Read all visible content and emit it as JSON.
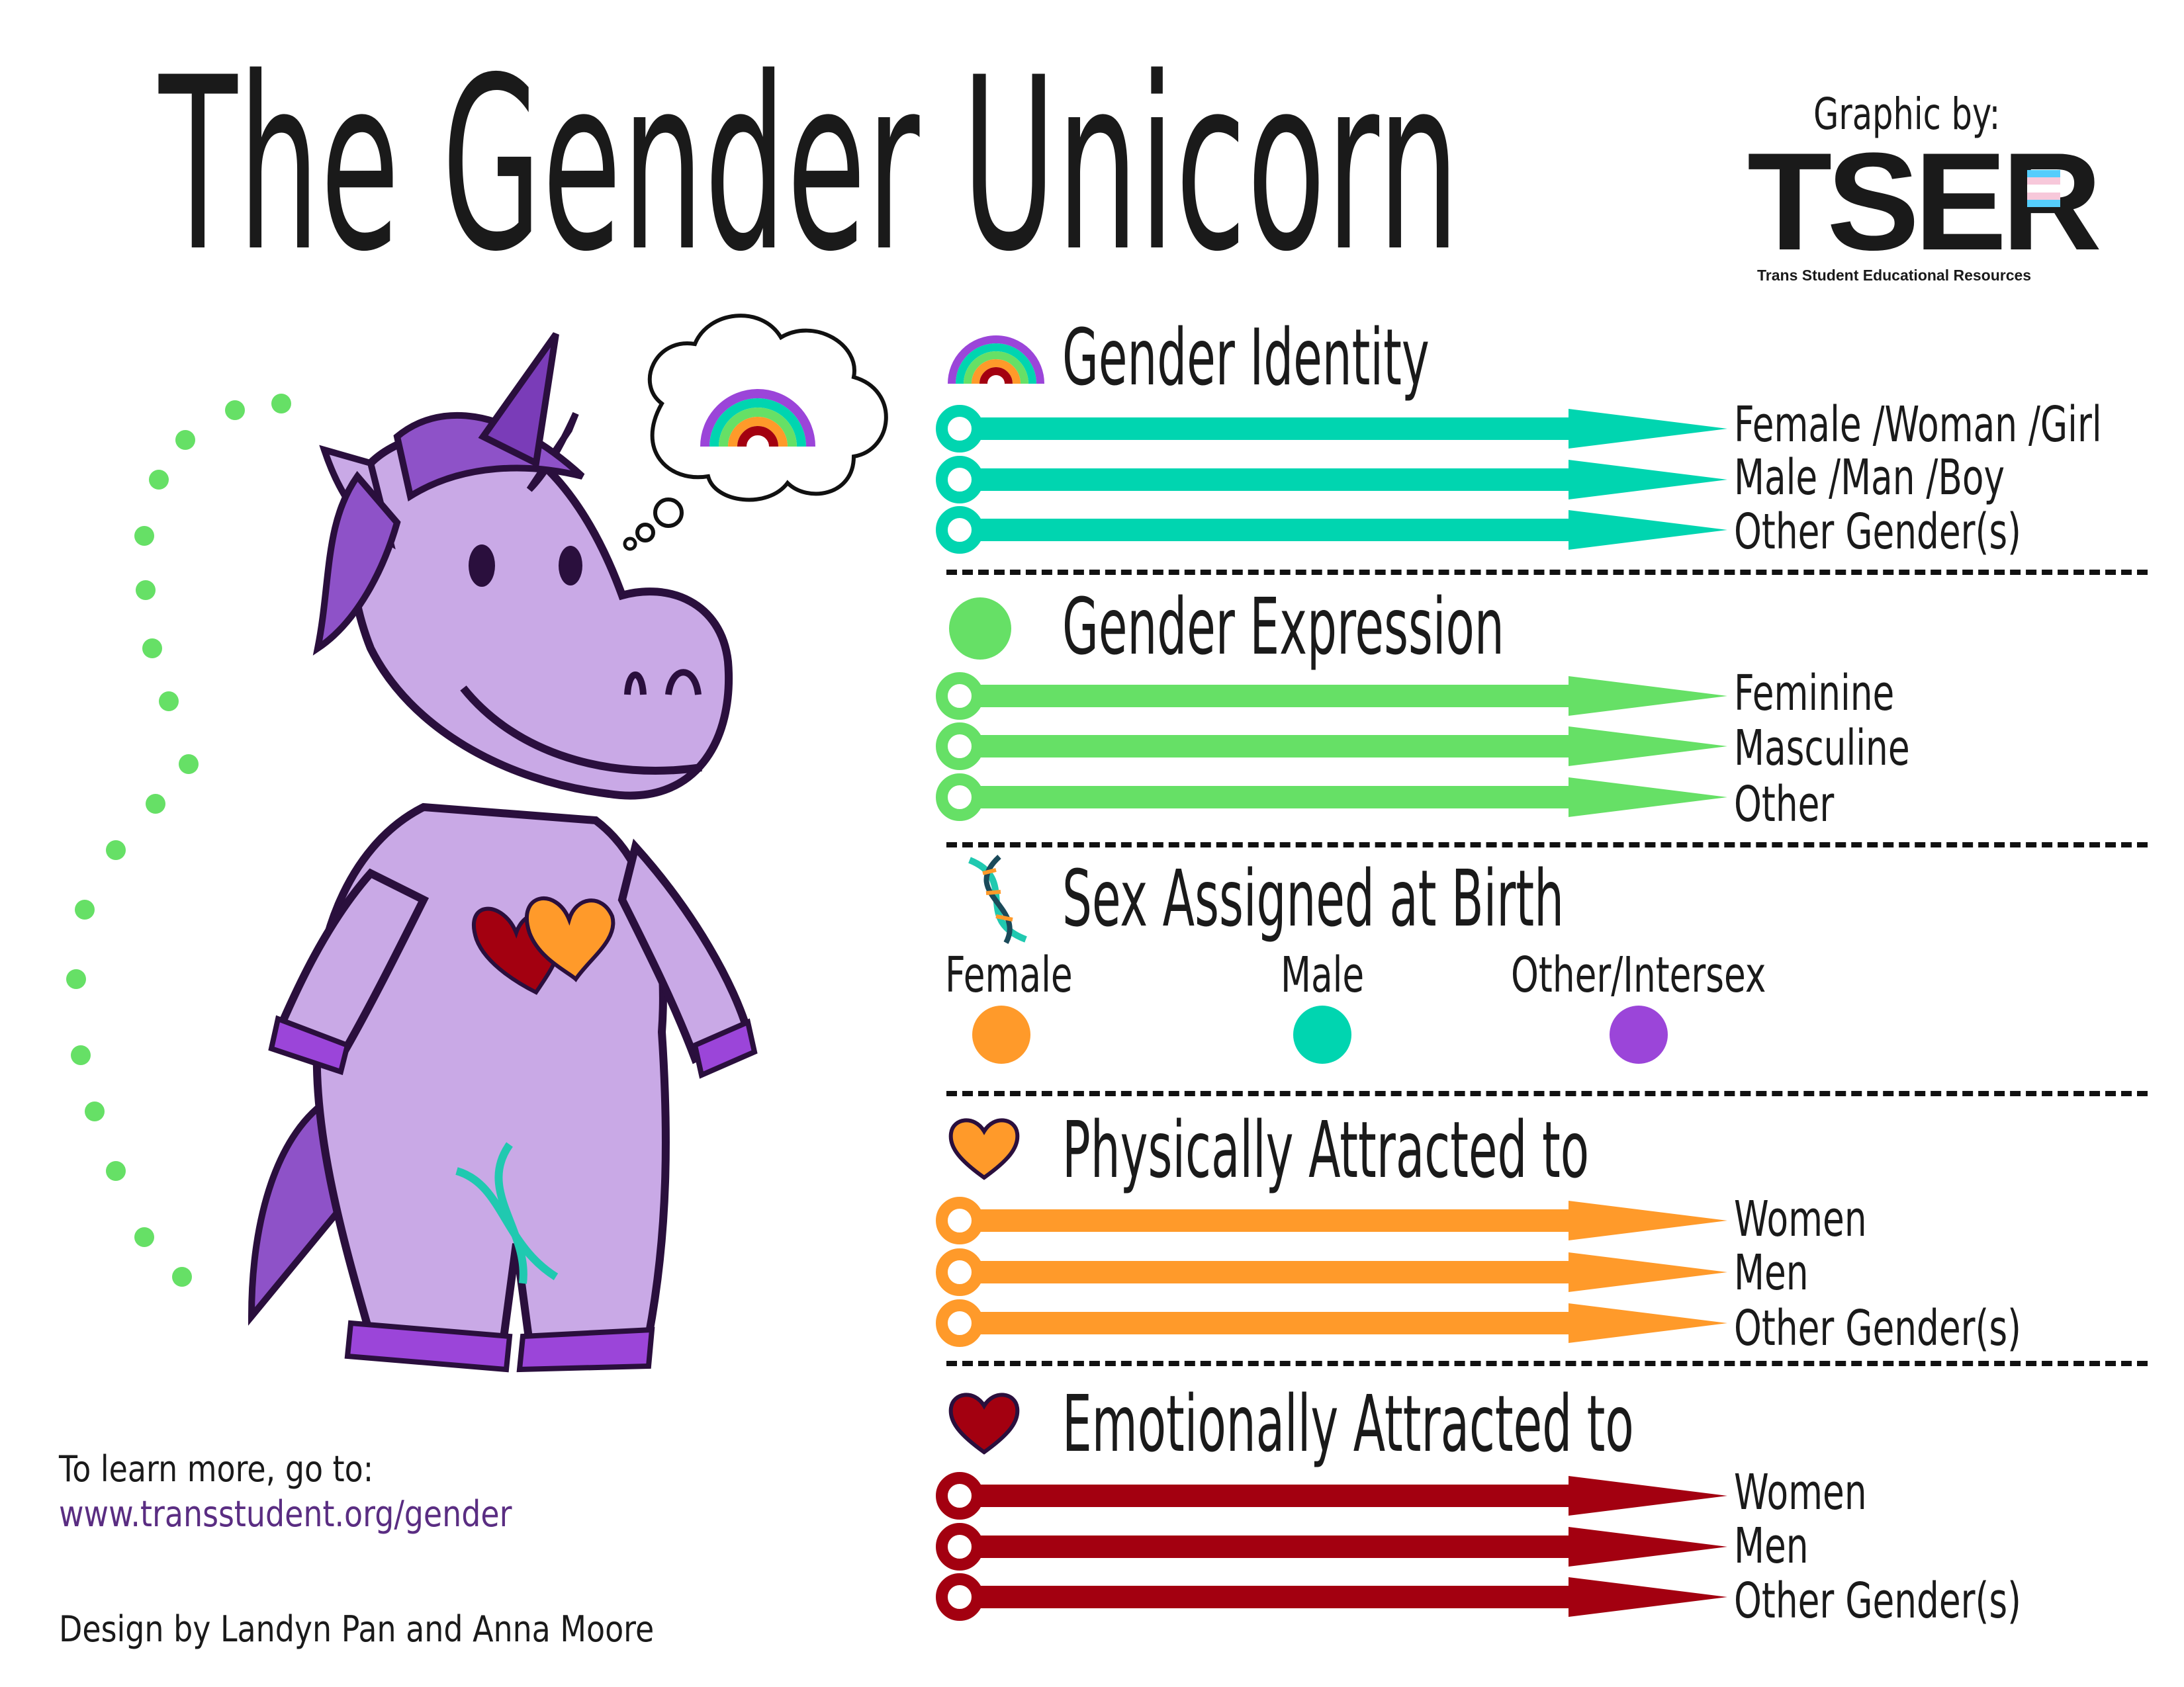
{
  "title": "The Gender Unicorn",
  "credit": {
    "label": "Graphic by:",
    "logo_text": "TSER",
    "logo_subtitle": "Trans Student Educational Resources"
  },
  "colors": {
    "gender_identity": "#00D5B0",
    "gender_expression": "#66E066",
    "sex_female": "#FF9A2A",
    "sex_male": "#00D5B0",
    "sex_other": "#9B45D9",
    "physical": "#FF9A2A",
    "emotional": "#A30010",
    "unicorn_body": "#C9A9E6",
    "link": "#5A2D82"
  },
  "sections": {
    "gender_identity": {
      "icon": "rainbow-icon",
      "heading": "Gender Identity",
      "items": [
        "Female /Woman /Girl",
        "Male /Man /Boy",
        "Other Gender(s)"
      ]
    },
    "gender_expression": {
      "icon": "circle-icon",
      "heading": "Gender Expression",
      "items": [
        "Feminine",
        "Masculine",
        "Other"
      ]
    },
    "sex_assigned": {
      "icon": "dna-icon",
      "heading": "Sex Assigned at Birth",
      "options": [
        "Female",
        "Male",
        "Other/Intersex"
      ]
    },
    "physically_attracted": {
      "icon": "heart-icon",
      "heading": "Physically Attracted to",
      "items": [
        "Women",
        "Men",
        "Other Gender(s)"
      ]
    },
    "emotionally_attracted": {
      "icon": "heart-icon",
      "heading": "Emotionally Attracted to",
      "items": [
        "Women",
        "Men",
        "Other Gender(s)"
      ]
    }
  },
  "footer": {
    "learn_more": "To learn more, go to:",
    "url": "www.transstudent.org/gender",
    "design_credit": "Design by Landyn Pan and Anna Moore"
  }
}
